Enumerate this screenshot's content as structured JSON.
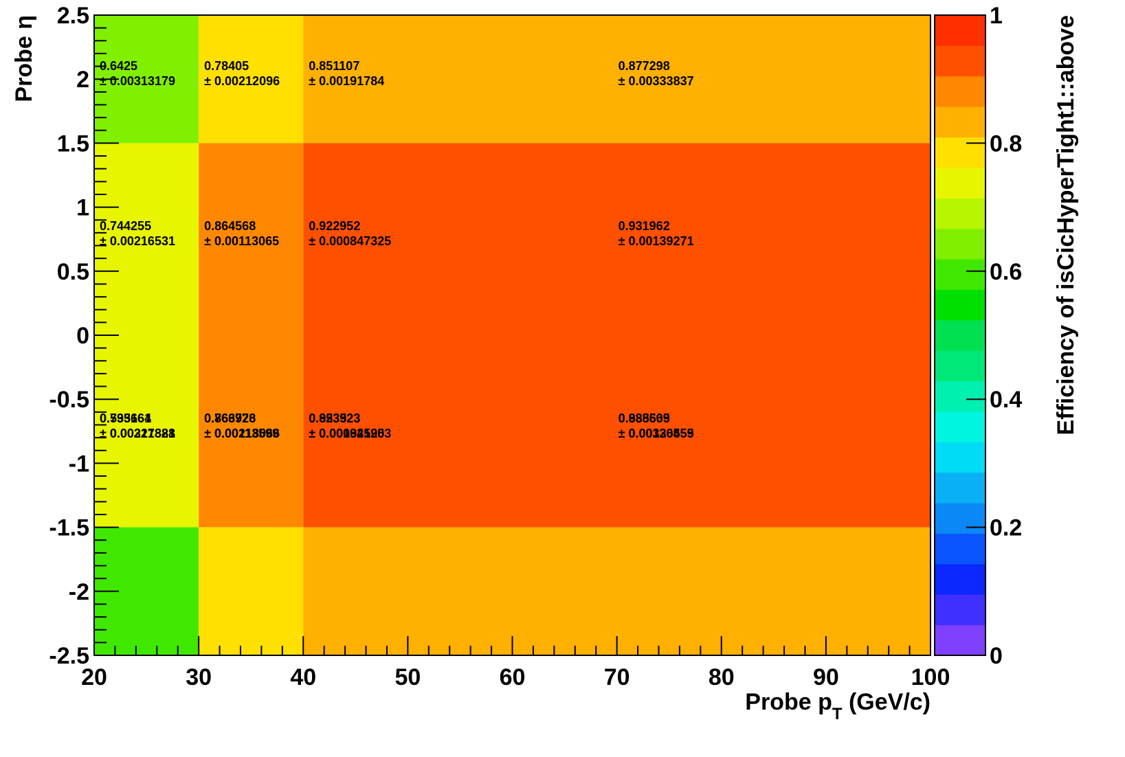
{
  "chart_data": {
    "type": "heatmap",
    "xlabel": "Probe p",
    "xlabel_sub": "T",
    "xlabel_unit": " (GeV/c)",
    "ylabel": "Probe η",
    "zlabel": "Efficiency of isCicHyperTight1::above",
    "xlim": [
      20,
      100
    ],
    "ylim": [
      -2.5,
      2.5
    ],
    "zlim": [
      0,
      1
    ],
    "x_edges": [
      20,
      30,
      40,
      100
    ],
    "y_edges": [
      -2.5,
      -1.5,
      0,
      1.5,
      2.5
    ],
    "x_ticks": [
      "20",
      "30",
      "40",
      "50",
      "60",
      "70",
      "80",
      "90",
      "100"
    ],
    "y_ticks": [
      "-2.5",
      "-2",
      "-1.5",
      "-1",
      "-0.5",
      "0",
      "0.5",
      "1",
      "1.5",
      "2",
      "2.5"
    ],
    "z_ticks": [
      "0",
      "0.2",
      "0.4",
      "0.6",
      "0.8",
      "1"
    ],
    "cells": [
      {
        "x": [
          20,
          30
        ],
        "y": [
          1.5,
          2.5
        ],
        "value": 0.6425,
        "value_text": "0.6425",
        "error_text": "± 0.00313179"
      },
      {
        "x": [
          30,
          40
        ],
        "y": [
          1.5,
          2.5
        ],
        "value": 0.78405,
        "value_text": "0.78405",
        "error_text": "± 0.00212096"
      },
      {
        "x": [
          40,
          100
        ],
        "y": [
          1.5,
          2.5
        ],
        "value": 0.851107,
        "value_text": "0.851107",
        "error_text": "± 0.00191784"
      },
      {
        "x": [
          40,
          100
        ],
        "y": [
          1.5,
          2.5
        ],
        "value": 0.877298,
        "value_text": "0.877298",
        "error_text": "± 0.00333837"
      },
      {
        "x": [
          20,
          30
        ],
        "y": [
          0,
          1.5
        ],
        "value": 0.744255,
        "value_text": "0.744255",
        "error_text": "± 0.00216531"
      },
      {
        "x": [
          30,
          40
        ],
        "y": [
          0,
          1.5
        ],
        "value": 0.864568,
        "value_text": "0.864568",
        "error_text": "± 0.00113065"
      },
      {
        "x": [
          40,
          100
        ],
        "y": [
          0,
          1.5
        ],
        "value": 0.922952,
        "value_text": "0.922952",
        "error_text": "± 0.000847325"
      },
      {
        "x": [
          40,
          100
        ],
        "y": [
          0,
          1.5
        ],
        "value": 0.931962,
        "value_text": "0.931962",
        "error_text": "± 0.00139271"
      },
      {
        "x": [
          20,
          30
        ],
        "y": [
          -1.5,
          0
        ],
        "value": 0.735664,
        "value_text": "0.735664",
        "error_text": "± 0.00217821"
      },
      {
        "x": [
          30,
          40
        ],
        "y": [
          -1.5,
          0
        ],
        "value": 0.863926,
        "value_text": "0.863926",
        "error_text": "± 0.00113599"
      },
      {
        "x": [
          40,
          100
        ],
        "y": [
          -1.5,
          0
        ],
        "value": 0.923923,
        "value_text": "0.923923",
        "error_text": "± 0.000845903"
      },
      {
        "x": [
          40,
          100
        ],
        "y": [
          -1.5,
          0
        ],
        "value": 0.935605,
        "value_text": "0.935605",
        "error_text": "± 0.00136555"
      },
      {
        "x": [
          20,
          30
        ],
        "y": [
          -2.5,
          -1.5
        ],
        "value": 0.593161,
        "value_text": "0.593161",
        "error_text": "± 0.00321888"
      },
      {
        "x": [
          30,
          40
        ],
        "y": [
          -2.5,
          -1.5
        ],
        "value": 0.766778,
        "value_text": "0.766778",
        "error_text": "± 0.00218066"
      },
      {
        "x": [
          40,
          100
        ],
        "y": [
          -2.5,
          -1.5
        ],
        "value": 0.853523,
        "value_text": "0.853523",
        "error_text": "± 0.00192125"
      },
      {
        "x": [
          40,
          100
        ],
        "y": [
          -2.5,
          -1.5
        ],
        "value": 0.888569,
        "value_text": "0.888569",
        "error_text": "± 0.00320459"
      }
    ],
    "palette": [
      "#8040ff",
      "#4030ff",
      "#0a28ff",
      "#0a55ff",
      "#0a88f5",
      "#0ab0f5",
      "#00dcf5",
      "#00f5e0",
      "#00f0b0",
      "#00e878",
      "#00e050",
      "#00e000",
      "#40e800",
      "#80f000",
      "#b8f500",
      "#e8f500",
      "#ffe000",
      "#ffb000",
      "#ff8800",
      "#ff5000",
      "#ff3000"
    ]
  }
}
